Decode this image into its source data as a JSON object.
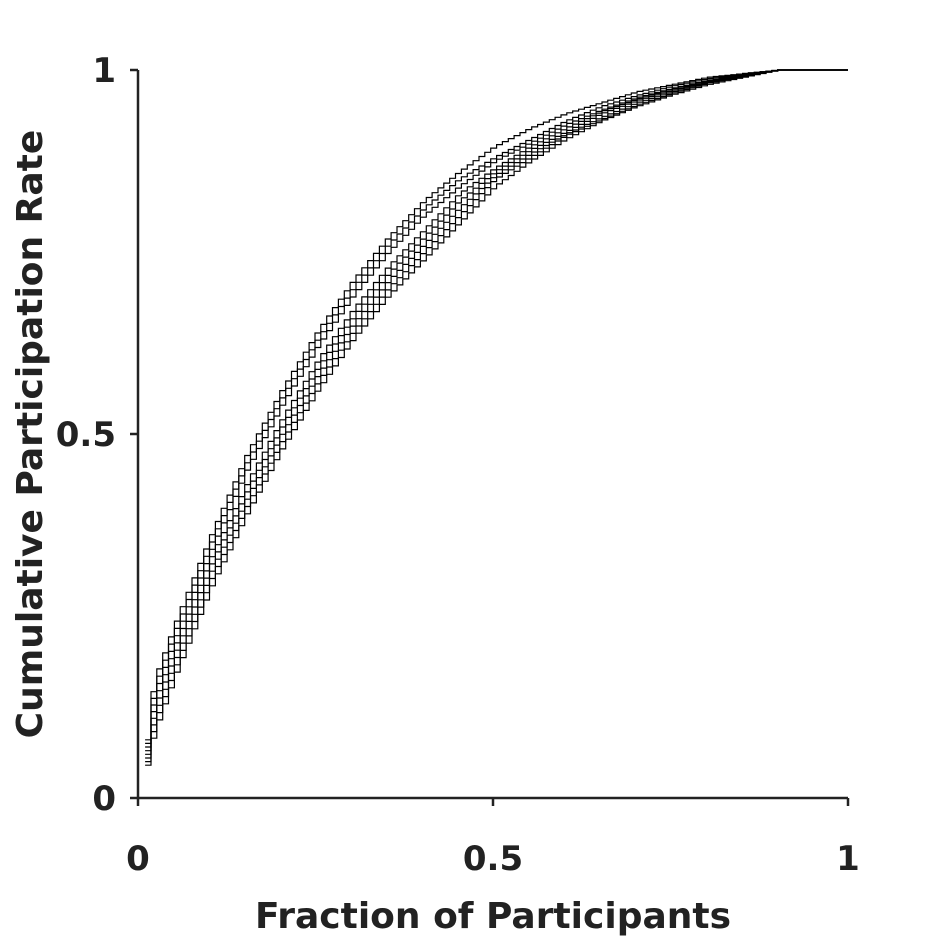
{
  "chart_data": {
    "type": "line",
    "step": true,
    "xlabel": "Fraction of Participants",
    "ylabel": "Cumulative Participation Rate",
    "xlim": [
      0,
      1
    ],
    "ylim": [
      0,
      1
    ],
    "xticks": [
      "0",
      "0.5",
      "1"
    ],
    "yticks": [
      "0",
      "0.5",
      "1"
    ],
    "grid": false,
    "legend": "none",
    "line_color": "#000000",
    "axis_color": "#222222",
    "series": [
      {
        "x": [
          0.01,
          0.02,
          0.05,
          0.1,
          0.15,
          0.2,
          0.25,
          0.3,
          0.35,
          0.4,
          0.45,
          0.5,
          0.55,
          0.6,
          0.65,
          0.7,
          0.75,
          0.8,
          0.85,
          0.9,
          1.0
        ],
        "y": [
          0.08,
          0.16,
          0.24,
          0.36,
          0.47,
          0.56,
          0.64,
          0.71,
          0.77,
          0.82,
          0.86,
          0.895,
          0.92,
          0.94,
          0.955,
          0.97,
          0.98,
          0.99,
          0.995,
          1.0,
          1.0
        ]
      },
      {
        "x": [
          0.01,
          0.02,
          0.05,
          0.1,
          0.15,
          0.2,
          0.25,
          0.3,
          0.35,
          0.4,
          0.45,
          0.5,
          0.55,
          0.6,
          0.65,
          0.7,
          0.75,
          0.8,
          0.85,
          0.9,
          1.0
        ],
        "y": [
          0.075,
          0.15,
          0.23,
          0.35,
          0.46,
          0.55,
          0.63,
          0.7,
          0.76,
          0.81,
          0.85,
          0.88,
          0.905,
          0.93,
          0.95,
          0.965,
          0.978,
          0.988,
          0.995,
          1.0,
          1.0
        ]
      },
      {
        "x": [
          0.01,
          0.02,
          0.05,
          0.1,
          0.15,
          0.2,
          0.25,
          0.3,
          0.35,
          0.4,
          0.45,
          0.5,
          0.55,
          0.6,
          0.65,
          0.7,
          0.75,
          0.8,
          0.85,
          0.9,
          1.0
        ],
        "y": [
          0.07,
          0.14,
          0.22,
          0.34,
          0.45,
          0.54,
          0.62,
          0.69,
          0.75,
          0.8,
          0.84,
          0.875,
          0.9,
          0.925,
          0.945,
          0.962,
          0.975,
          0.986,
          0.994,
          1.0,
          1.0
        ]
      },
      {
        "x": [
          0.01,
          0.02,
          0.05,
          0.1,
          0.15,
          0.2,
          0.25,
          0.3,
          0.35,
          0.4,
          0.45,
          0.5,
          0.55,
          0.6,
          0.65,
          0.7,
          0.75,
          0.8,
          0.85,
          0.9,
          1.0
        ],
        "y": [
          0.065,
          0.13,
          0.21,
          0.33,
          0.43,
          0.52,
          0.6,
          0.67,
          0.73,
          0.78,
          0.83,
          0.865,
          0.895,
          0.92,
          0.943,
          0.96,
          0.974,
          0.985,
          0.993,
          1.0,
          1.0
        ]
      },
      {
        "x": [
          0.01,
          0.02,
          0.05,
          0.1,
          0.15,
          0.2,
          0.25,
          0.3,
          0.35,
          0.4,
          0.45,
          0.5,
          0.55,
          0.6,
          0.65,
          0.7,
          0.75,
          0.8,
          0.85,
          0.9,
          1.0
        ],
        "y": [
          0.06,
          0.12,
          0.2,
          0.32,
          0.42,
          0.51,
          0.59,
          0.66,
          0.72,
          0.77,
          0.82,
          0.86,
          0.89,
          0.915,
          0.94,
          0.958,
          0.972,
          0.984,
          0.993,
          1.0,
          1.0
        ]
      },
      {
        "x": [
          0.01,
          0.02,
          0.05,
          0.1,
          0.15,
          0.2,
          0.25,
          0.3,
          0.35,
          0.4,
          0.45,
          0.5,
          0.55,
          0.6,
          0.65,
          0.7,
          0.75,
          0.8,
          0.85,
          0.9,
          1.0
        ],
        "y": [
          0.055,
          0.11,
          0.19,
          0.31,
          0.41,
          0.5,
          0.58,
          0.65,
          0.71,
          0.76,
          0.81,
          0.855,
          0.885,
          0.912,
          0.935,
          0.955,
          0.97,
          0.983,
          0.992,
          1.0,
          1.0
        ]
      },
      {
        "x": [
          0.01,
          0.02,
          0.05,
          0.1,
          0.15,
          0.2,
          0.25,
          0.3,
          0.35,
          0.4,
          0.45,
          0.5,
          0.55,
          0.6,
          0.65,
          0.7,
          0.75,
          0.8,
          0.85,
          0.9,
          1.0
        ],
        "y": [
          0.05,
          0.1,
          0.18,
          0.3,
          0.4,
          0.49,
          0.57,
          0.64,
          0.7,
          0.75,
          0.8,
          0.85,
          0.88,
          0.91,
          0.932,
          0.952,
          0.968,
          0.982,
          0.991,
          1.0,
          1.0
        ]
      },
      {
        "x": [
          0.01,
          0.02,
          0.05,
          0.1,
          0.15,
          0.2,
          0.25,
          0.3,
          0.35,
          0.4,
          0.45,
          0.5,
          0.55,
          0.6,
          0.65,
          0.7,
          0.75,
          0.8,
          0.85,
          0.9,
          1.0
        ],
        "y": [
          0.045,
          0.09,
          0.17,
          0.29,
          0.39,
          0.48,
          0.56,
          0.63,
          0.69,
          0.74,
          0.79,
          0.84,
          0.875,
          0.905,
          0.93,
          0.95,
          0.966,
          0.98,
          0.99,
          1.0,
          1.0
        ]
      }
    ]
  }
}
